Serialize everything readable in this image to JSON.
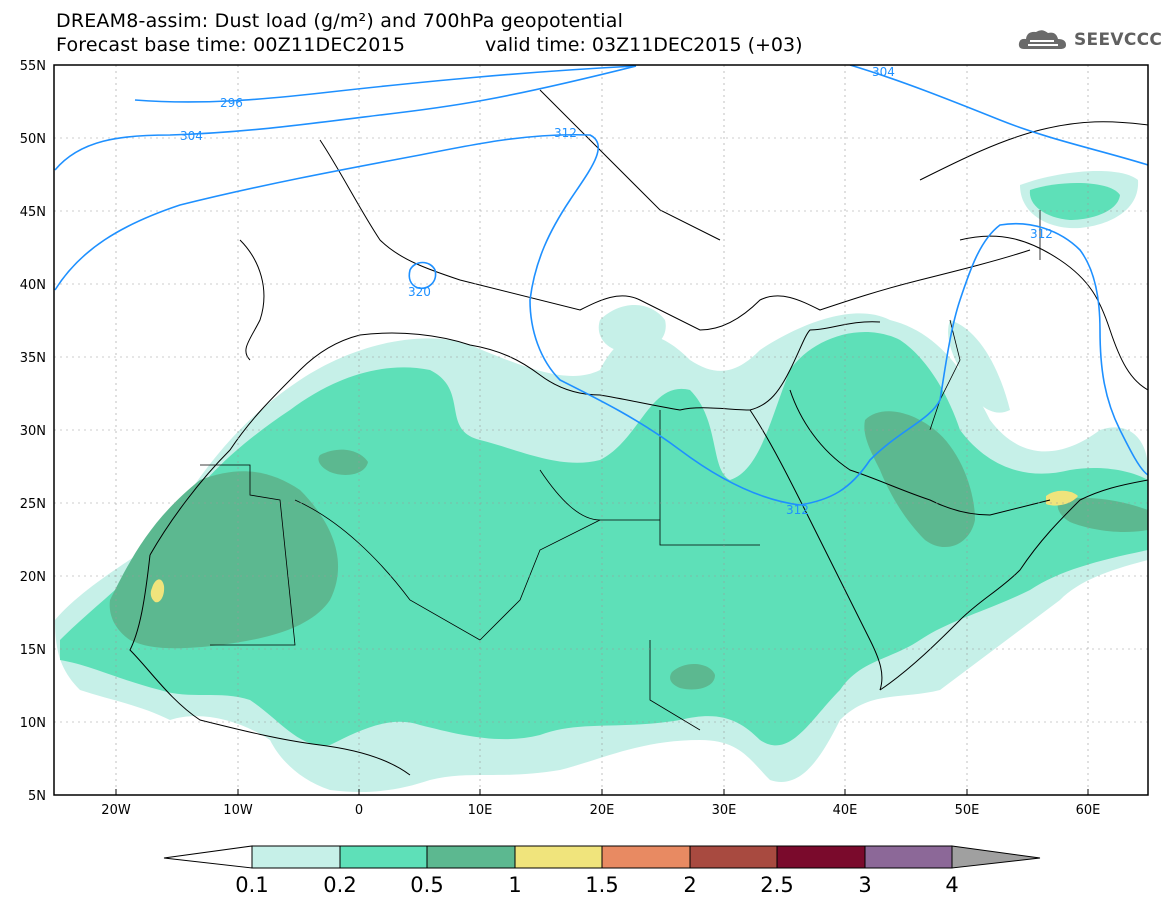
{
  "header": {
    "title_line1": "DREAM8-assim: Dust load (g/m²) and 700hPa geopotential",
    "title_line2": "Forecast base time: 00Z11DEC2015",
    "valid_time": "valid time: 03Z11DEC2015 (+03)"
  },
  "logo": {
    "text": "SEEVCCC",
    "icon": "cloud-icon"
  },
  "map": {
    "lat_range": [
      5,
      55
    ],
    "lon_range": [
      -25,
      65
    ],
    "lat_labels": [
      "55N",
      "50N",
      "45N",
      "40N",
      "35N",
      "30N",
      "25N",
      "20N",
      "15N",
      "10N",
      "5N"
    ],
    "lon_labels": [
      "20W",
      "10W",
      "0",
      "10E",
      "20E",
      "30E",
      "40E",
      "50E",
      "60E"
    ],
    "contour_labels": [
      "296",
      "304",
      "312",
      "304",
      "312",
      "320",
      "312"
    ]
  },
  "colorbar": {
    "ticks": [
      "0.1",
      "0.2",
      "0.5",
      "1",
      "1.5",
      "2",
      "2.5",
      "3",
      "4"
    ],
    "colors": [
      "#c6f0e8",
      "#5ee0b8",
      "#5cb890",
      "#f0e47c",
      "#e88a62",
      "#a84a40",
      "#7a0a2c",
      "#8c6898"
    ],
    "extend_low": "#ffffff",
    "extend_high": "#a0a0a0"
  },
  "colors": {
    "contour": "#1e90ff",
    "coast": "#000000",
    "grid": "#9a9a9a"
  }
}
